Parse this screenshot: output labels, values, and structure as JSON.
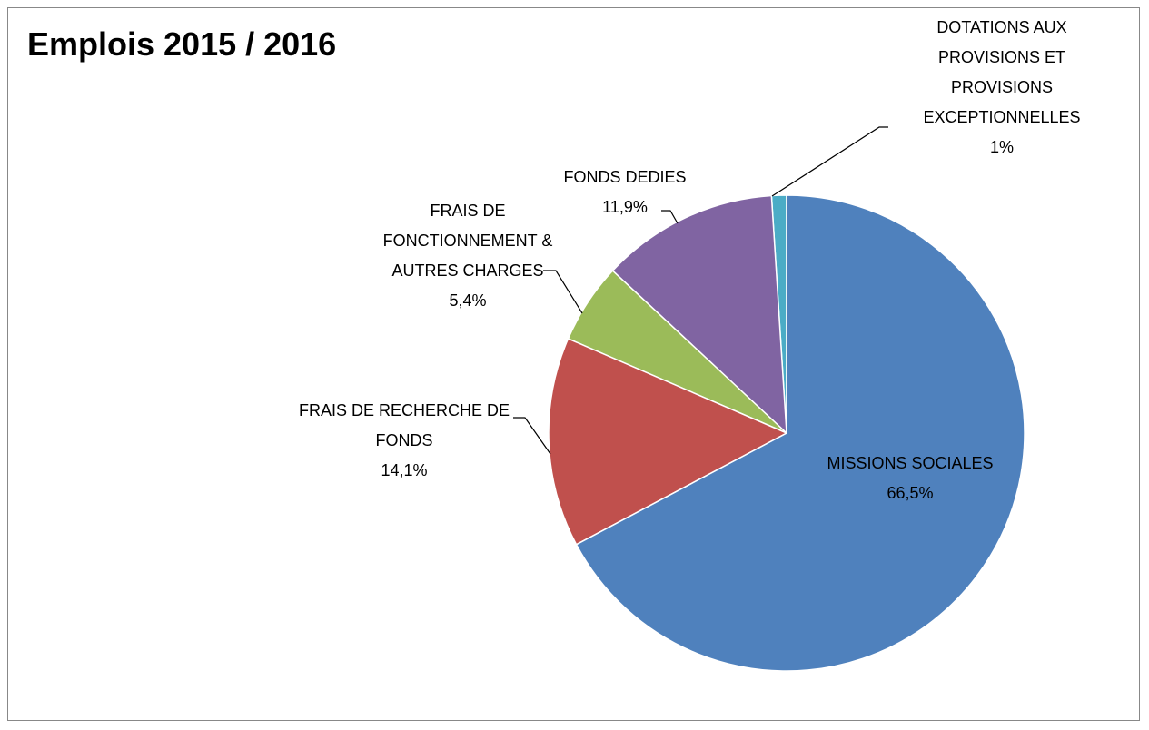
{
  "chart_data": {
    "type": "pie",
    "title": "Emplois 2015 / 2016",
    "categories": [
      "MISSIONS SOCIALES",
      "FRAIS DE RECHERCHE DE FONDS",
      "FRAIS DE FONCTIONNEMENT & AUTRES CHARGES",
      "FONDS DEDIES",
      "DOTATIONS AUX PROVISIONS ET PROVISIONS EXCEPTIONNELLES"
    ],
    "values": [
      66.5,
      14.1,
      5.4,
      11.9,
      1
    ],
    "value_labels": [
      "66,5%",
      "14,1%",
      "5,4%",
      "11,9%",
      "1%"
    ],
    "colors": [
      "#4f81bd",
      "#c0504d",
      "#9bbb59",
      "#8064a2",
      "#4bacc6"
    ]
  }
}
